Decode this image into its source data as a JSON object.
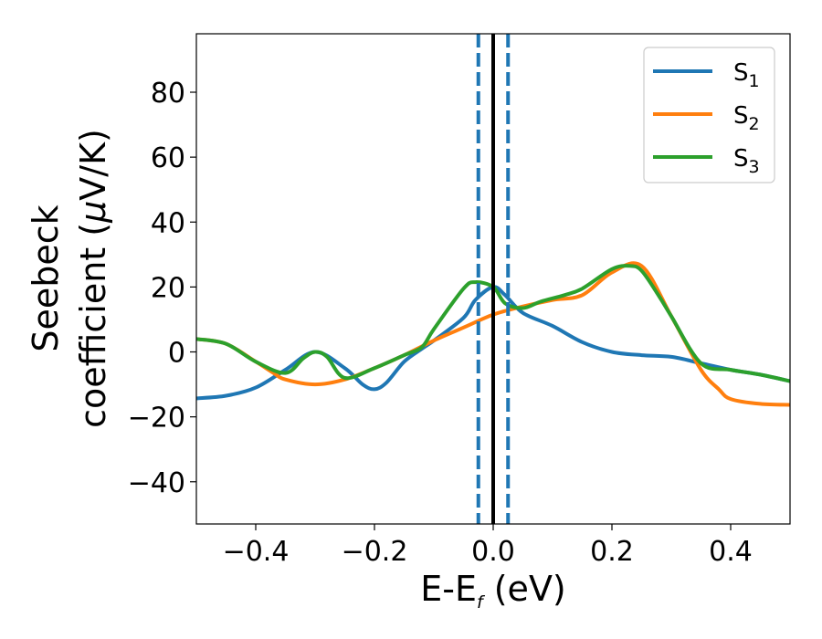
{
  "chart_data": {
    "type": "line",
    "title": "",
    "xlabel": "E-E",
    "xlabel_subscript": "f",
    "xlabel_suffix": " (eV)",
    "ylabel_line1": "Seebeck",
    "ylabel_line2": "coefficient  (",
    "ylabel_mu": "μ",
    "ylabel_unit": "V/K)",
    "xlim": [
      -0.5,
      0.5
    ],
    "ylim": [
      -53,
      98
    ],
    "xticks": [
      -0.4,
      -0.2,
      0.0,
      0.2,
      0.4
    ],
    "xtick_labels": [
      "−0.4",
      "−0.2",
      "0.0",
      "0.2",
      "0.4"
    ],
    "yticks": [
      -40,
      -20,
      0,
      20,
      40,
      60,
      80
    ],
    "ytick_labels": [
      "−40",
      "−20",
      "0",
      "20",
      "40",
      "60",
      "80"
    ],
    "grid": false,
    "legend_position": "top-right",
    "series": [
      {
        "name": "S",
        "name_subscript": "1",
        "color": "#1f77b4",
        "x": [
          -0.5,
          -0.45,
          -0.4,
          -0.35,
          -0.3,
          -0.25,
          -0.22,
          -0.2,
          -0.18,
          -0.15,
          -0.12,
          -0.1,
          -0.05,
          -0.03,
          0.0,
          0.02,
          0.05,
          0.1,
          0.15,
          0.2,
          0.25,
          0.3,
          0.35,
          0.4,
          0.45,
          0.5
        ],
        "y": [
          -14.3,
          -13.5,
          -11.0,
          -5.5,
          0.0,
          -5.0,
          -10.0,
          -11.5,
          -9.5,
          -3.0,
          1.0,
          3.5,
          10.5,
          16.0,
          20.0,
          17.5,
          12.0,
          8.0,
          3.0,
          0.0,
          -1.0,
          -1.5,
          -3.5,
          -5.5,
          -7.0,
          -9.0
        ]
      },
      {
        "name": "S",
        "name_subscript": "2",
        "color": "#ff7f0e",
        "x": [
          -0.5,
          -0.45,
          -0.4,
          -0.37,
          -0.35,
          -0.3,
          -0.25,
          -0.2,
          -0.15,
          -0.1,
          -0.05,
          0.0,
          0.05,
          0.1,
          0.15,
          0.2,
          0.25,
          0.3,
          0.35,
          0.38,
          0.4,
          0.45,
          0.5
        ],
        "y": [
          4.0,
          2.5,
          -3.0,
          -6.5,
          -8.5,
          -10.0,
          -8.5,
          -5.0,
          -1.0,
          3.5,
          7.5,
          11.5,
          14.0,
          16.0,
          17.5,
          24.5,
          26.5,
          11.0,
          -5.5,
          -11.5,
          -14.5,
          -16.0,
          -16.3
        ]
      },
      {
        "name": "S",
        "name_subscript": "3",
        "color": "#2ca02c",
        "x": [
          -0.5,
          -0.45,
          -0.4,
          -0.35,
          -0.32,
          -0.3,
          -0.28,
          -0.25,
          -0.2,
          -0.15,
          -0.12,
          -0.1,
          -0.05,
          -0.03,
          0.0,
          0.02,
          0.05,
          0.08,
          0.12,
          0.15,
          0.2,
          0.23,
          0.25,
          0.28,
          0.3,
          0.35,
          0.4,
          0.45,
          0.5
        ],
        "y": [
          4.0,
          2.5,
          -3.0,
          -6.5,
          -2.0,
          0.0,
          -1.5,
          -8.0,
          -5.0,
          -1.0,
          1.5,
          7.0,
          19.5,
          21.5,
          20.0,
          15.0,
          13.5,
          15.5,
          17.5,
          19.5,
          25.5,
          26.5,
          25.0,
          17.0,
          11.0,
          -3.5,
          -5.5,
          -7.0,
          -9.0
        ]
      }
    ],
    "vertical_lines": [
      {
        "x": -0.025,
        "style": "dashed",
        "color": "#1f77b4"
      },
      {
        "x": 0.0,
        "style": "solid",
        "color": "#000000"
      },
      {
        "x": 0.025,
        "style": "dashed",
        "color": "#1f77b4"
      }
    ]
  }
}
